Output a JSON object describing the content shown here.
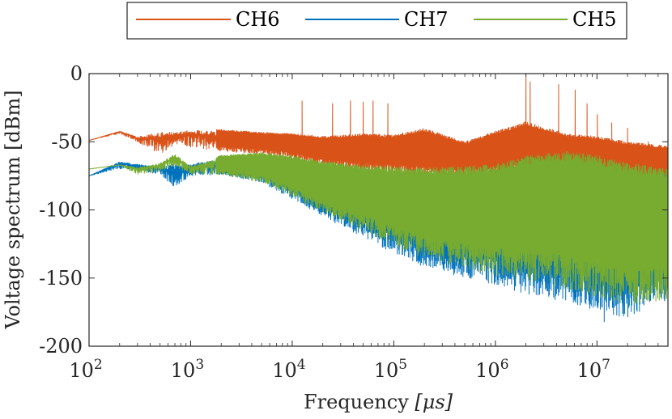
{
  "chart_data": {
    "type": "line",
    "x_scale": "log",
    "xlim": [
      100,
      50000000
    ],
    "ylim": [
      -200,
      0
    ],
    "xlabel_text": "Frequency ",
    "xlabel_unit": "[μs]",
    "ylabel": "Voltage spectrum [dBm]",
    "x_ticks": [
      {
        "base": "10",
        "exp": "2",
        "value": 100
      },
      {
        "base": "10",
        "exp": "3",
        "value": 1000
      },
      {
        "base": "10",
        "exp": "4",
        "value": 10000
      },
      {
        "base": "10",
        "exp": "5",
        "value": 100000
      },
      {
        "base": "10",
        "exp": "6",
        "value": 1000000
      },
      {
        "base": "10",
        "exp": "7",
        "value": 10000000
      }
    ],
    "y_ticks": [
      {
        "label": "0",
        "value": 0
      },
      {
        "label": "-50",
        "value": -50
      },
      {
        "label": "-100",
        "value": -100
      },
      {
        "label": "-150",
        "value": -150
      },
      {
        "label": "-200",
        "value": -200
      }
    ],
    "legend_position": "top-center",
    "series": [
      {
        "name": "CH6",
        "color": "#D95319",
        "envelope": {
          "x": [
            100,
            200,
            300,
            500,
            700,
            1000,
            2000,
            5000,
            10000,
            20000,
            50000,
            100000,
            200000,
            500000,
            1000000,
            2000000,
            5000000,
            10000000,
            20000000,
            50000000
          ],
          "upper": [
            -49,
            -42,
            -46,
            -41,
            -42,
            -40,
            -41,
            -43,
            -44,
            -46,
            -44,
            -45,
            -40,
            -50,
            -42,
            -35,
            -44,
            -46,
            -50,
            -53
          ],
          "lower": [
            -49,
            -44,
            -50,
            -60,
            -52,
            -54,
            -57,
            -59,
            -62,
            -68,
            -72,
            -74,
            -76,
            -76,
            -76,
            -76,
            -76,
            -78,
            -80,
            -82
          ]
        },
        "spikes": [
          {
            "x": 12500,
            "y": -20
          },
          {
            "x": 25000,
            "y": -22
          },
          {
            "x": 37500,
            "y": -20
          },
          {
            "x": 50000,
            "y": -21
          },
          {
            "x": 62500,
            "y": -20
          },
          {
            "x": 87500,
            "y": -22
          },
          {
            "x": 2000000,
            "y": 0
          },
          {
            "x": 2200000,
            "y": -6
          },
          {
            "x": 4200000,
            "y": -8
          },
          {
            "x": 6100000,
            "y": -12
          },
          {
            "x": 8000000,
            "y": -22
          },
          {
            "x": 10100000,
            "y": -30
          },
          {
            "x": 14000000,
            "y": -36
          },
          {
            "x": 20000000,
            "y": -40
          },
          {
            "x": 32000000,
            "y": -50
          }
        ]
      },
      {
        "name": "CH7",
        "color": "#0072BD",
        "envelope": {
          "x": [
            100,
            200,
            300,
            500,
            700,
            1000,
            2000,
            5000,
            10000,
            20000,
            50000,
            100000,
            200000,
            500000,
            1000000,
            2000000,
            5000000,
            10000000,
            20000000,
            50000000
          ],
          "upper": [
            -75,
            -64,
            -66,
            -68,
            -64,
            -65,
            -62,
            -60,
            -62,
            -66,
            -70,
            -72,
            -73,
            -74,
            -72,
            -70,
            -65,
            -68,
            -72,
            -74
          ],
          "lower": [
            -75,
            -70,
            -71,
            -74,
            -84,
            -75,
            -74,
            -80,
            -92,
            -105,
            -120,
            -132,
            -142,
            -150,
            -155,
            -162,
            -168,
            -175,
            -180,
            -168
          ]
        },
        "spikes": [
          {
            "x": 11800000,
            "y": -182
          },
          {
            "x": 300000,
            "y": -140
          },
          {
            "x": 1000000,
            "y": -153
          }
        ]
      },
      {
        "name": "CH5",
        "color": "#77AC30",
        "envelope": {
          "x": [
            100,
            200,
            300,
            500,
            700,
            1000,
            2000,
            5000,
            10000,
            20000,
            50000,
            100000,
            200000,
            500000,
            1000000,
            2000000,
            5000000,
            10000000,
            20000000,
            50000000
          ],
          "upper": [
            -70,
            -67,
            -68,
            -65,
            -58,
            -67,
            -60,
            -58,
            -60,
            -64,
            -67,
            -68,
            -69,
            -68,
            -66,
            -60,
            -57,
            -60,
            -65,
            -70
          ],
          "lower": [
            -70,
            -67,
            -74,
            -72,
            -68,
            -74,
            -74,
            -80,
            -90,
            -102,
            -115,
            -126,
            -136,
            -143,
            -148,
            -152,
            -158,
            -164,
            -170,
            -166
          ]
        },
        "spikes": []
      }
    ]
  }
}
